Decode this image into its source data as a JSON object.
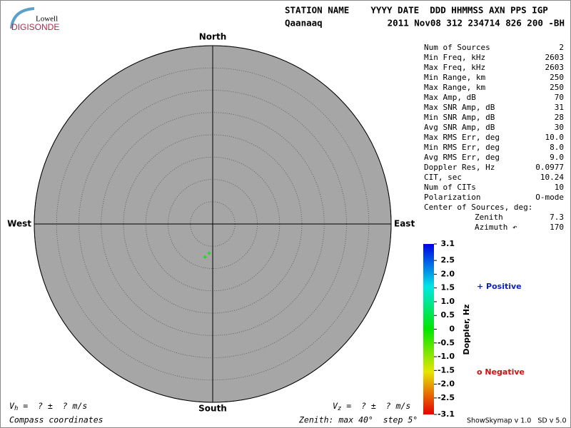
{
  "logo": {
    "top": "Lowell",
    "bottom": "DIGISONDE"
  },
  "header": {
    "columns": "STATION NAME    YYYY DATE  DDD HHMMSS AXN PPS IGP",
    "station": "Qaanaaq",
    "values": "2011 Nov08 312 234714 826 200 -BH"
  },
  "stats": [
    {
      "label": "Num of Sources",
      "value": "2"
    },
    {
      "label": "Min Freq, kHz",
      "value": "2603"
    },
    {
      "label": "Max Freq, kHz",
      "value": "2603"
    },
    {
      "label": "Min Range, km",
      "value": "250"
    },
    {
      "label": "Max Range, km",
      "value": "250"
    },
    {
      "label": "Max Amp, dB",
      "value": "70"
    },
    {
      "label": "Max SNR Amp, dB",
      "value": "31"
    },
    {
      "label": "Min SNR Amp, dB",
      "value": "28"
    },
    {
      "label": "Avg SNR Amp, dB",
      "value": "30"
    },
    {
      "label": "Max RMS Err, deg",
      "value": "10.0"
    },
    {
      "label": "Min RMS Err, deg",
      "value": "8.0"
    },
    {
      "label": "Avg RMS Err, deg",
      "value": "9.0"
    },
    {
      "label": "Doppler Res, Hz",
      "value": "0.0977"
    },
    {
      "label": "CIT, sec",
      "value": "10.24"
    },
    {
      "label": "Num of CITs",
      "value": "10"
    },
    {
      "label": "Polarization",
      "value": "O-mode"
    },
    {
      "label": "Center of Sources, deg:"
    }
  ],
  "center": [
    {
      "label": "Zenith",
      "value": "7.3"
    },
    {
      "label": "Azimuth ↶",
      "value": "170"
    }
  ],
  "chart_data": {
    "type": "polar",
    "directions": {
      "north": "North",
      "south": "South",
      "east": "East",
      "west": "West"
    },
    "rlim": [
      0,
      40
    ],
    "rticks": [
      5,
      10,
      15,
      20,
      25,
      30,
      35,
      40
    ],
    "background": "#a6a6a6",
    "points": {
      "zenith": [
        6.6,
        7.6
      ],
      "azimuth": [
        187,
        193
      ],
      "doppler": [
        0,
        0
      ]
    },
    "colorbar": {
      "label": "Doppler, Hz",
      "clim": [
        -3.1,
        3.1
      ],
      "ticks": [
        3.1,
        2.5,
        {
          "value": 2,
          "label": "2.0"
        },
        1.5,
        {
          "value": 1,
          "label": "1.0"
        },
        0.5,
        0,
        -0.5,
        {
          "value": -1,
          "label": "-1.0"
        },
        -1.5,
        {
          "value": -2,
          "label": "-2.0"
        },
        -2.5,
        -3.1
      ]
    },
    "legend": {
      "positive": "+ Positive",
      "negative": "o Negative"
    }
  },
  "footer": {
    "vh_symbol": "V",
    "vh_sub": "h",
    "vh_text": " =  ? ±  ? m/s",
    "vz_symbol": "V",
    "vz_sub": "z",
    "vz_text": " =  ? ±  ? m/s",
    "coords": "Compass coordinates",
    "zenith": "Zenith: max 40°  step 5°",
    "version": "ShowSkymap v 1.0   SD v 5.0"
  }
}
